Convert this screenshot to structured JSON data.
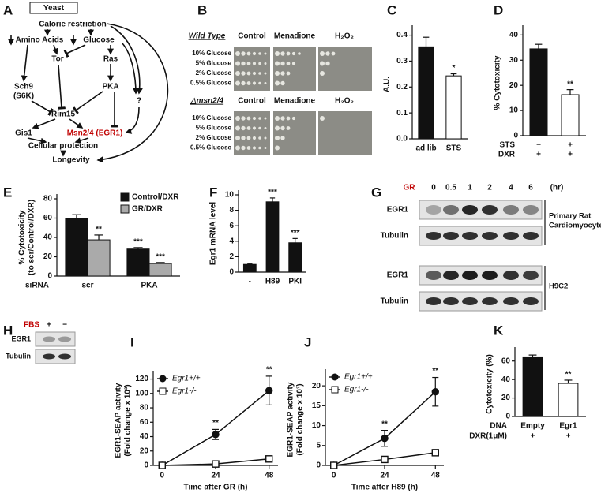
{
  "diagram": {
    "label": "A",
    "title": "Yeast",
    "nodes": [
      "Calorie restriction",
      "Amino Acids",
      "Glucose",
      "Tor",
      "Ras",
      "Sch9",
      "(S6K)",
      "PKA",
      "Rim15",
      "?",
      "Gis1",
      "Msn2/4 (EGR1)",
      "Cellular protection",
      "Longevity"
    ]
  },
  "plates": {
    "label": "B",
    "columns": [
      "Control",
      "Menadione",
      "H₂O₂"
    ],
    "strains": [
      {
        "name": "Wild Type",
        "rows": [
          "10% Glucose",
          "5% Glucose",
          "2% Glucose",
          "0.5% Glucose"
        ]
      },
      {
        "name": "△msn2/4",
        "rows": [
          "10% Glucose",
          "5% Glucose",
          "2% Glucose",
          "0.5% Glucose"
        ]
      }
    ]
  },
  "blot_g": {
    "label": "G",
    "treatment": "GR",
    "timepoints": [
      "0",
      "0.5",
      "1",
      "2",
      "4",
      "6"
    ],
    "unit": "(hr)",
    "blocks": [
      {
        "cell": [
          "Primary Rat",
          "Cardiomyocyte"
        ],
        "rows": [
          "EGR1",
          "Tubulin"
        ]
      },
      {
        "cell": [
          "H9C2"
        ],
        "rows": [
          "EGR1",
          "Tubulin"
        ]
      }
    ]
  },
  "blot_h": {
    "label": "H",
    "treatment": "FBS",
    "conditions": [
      "+",
      "−"
    ],
    "rows": [
      "EGR1",
      "Tubulin"
    ]
  },
  "chart_data": [
    {
      "type": "bar",
      "label": "C",
      "ylabel": [
        "A.U."
      ],
      "categories": [
        "ad lib",
        "STS"
      ],
      "values": [
        0.355,
        0.243
      ],
      "errors": [
        0.037,
        0.008
      ],
      "significance": [
        null,
        "*"
      ],
      "colors": [
        "#111111",
        "#ffffff"
      ],
      "ylim": [
        0,
        0.42
      ],
      "yticks": [
        {
          "value": 0,
          "label": "0.0"
        },
        0.1,
        0.2,
        0.3,
        0.4
      ]
    },
    {
      "type": "bar",
      "label": "D",
      "ylabel": [
        "% Cytotoxicity"
      ],
      "values": [
        34.5,
        16.3
      ],
      "errors": [
        1.8,
        2.0
      ],
      "significance": [
        null,
        "**"
      ],
      "colors": [
        "#111111",
        "#ffffff"
      ],
      "ylim": [
        0,
        42
      ],
      "yticks": [
        0,
        10,
        20,
        30,
        40
      ],
      "conditions": [
        {
          "name": "STS",
          "values": [
            "−",
            "+"
          ]
        },
        {
          "name": "DXR",
          "values": [
            "+",
            "+"
          ]
        }
      ]
    },
    {
      "type": "bar",
      "label": "E",
      "ylabel": [
        "% Cytotoxicity",
        "(to scr/Control/DXR)"
      ],
      "category_title": "siRNA",
      "categories": [
        "scr",
        "PKA"
      ],
      "series": [
        {
          "name": "Control/DXR",
          "color": "#111111",
          "values": [
            59.5,
            28.0
          ],
          "errors": [
            4.0,
            1.5
          ],
          "significance": [
            null,
            "***"
          ]
        },
        {
          "name": "GR/DXR",
          "color": "#aaaaaa",
          "values": [
            37.5,
            13.0
          ],
          "errors": [
            5.0,
            1.0
          ],
          "significance": [
            "**",
            "***"
          ]
        }
      ],
      "legend": "upper right",
      "ylim": [
        0,
        80
      ],
      "yticks": [
        0,
        20,
        40,
        60,
        80
      ]
    },
    {
      "type": "bar",
      "label": "F",
      "ylabel": [
        "Egr1 mRNA level"
      ],
      "categories": [
        "-",
        "H89",
        "PKI"
      ],
      "values": [
        1.0,
        9.1,
        3.8
      ],
      "errors": [
        0.1,
        0.5,
        0.55
      ],
      "significance": [
        null,
        "***",
        "***"
      ],
      "colors": [
        "#111111",
        "#111111",
        "#111111"
      ],
      "ylim": [
        0,
        10
      ],
      "yticks": [
        0,
        2,
        4,
        6,
        8,
        10
      ]
    },
    {
      "type": "line",
      "label": "I",
      "ylabel": [
        "EGR1-SEAP activity",
        "(Fold change x 10³)"
      ],
      "xlabel": "Time after GR (h)",
      "x": [
        0,
        24,
        48
      ],
      "series": [
        {
          "name": "Egr1+/+",
          "color": "#111111",
          "fill": "#111111",
          "marker": "circle",
          "values": [
            0,
            43,
            104
          ],
          "errors": [
            0,
            7,
            20
          ],
          "significance": [
            null,
            "**",
            "**"
          ]
        },
        {
          "name": "Egr1-/-",
          "color": "#111111",
          "fill": "#ffffff",
          "marker": "square",
          "values": [
            0,
            2,
            9
          ]
        }
      ],
      "legend": "upper left",
      "xlim": [
        -4,
        52
      ],
      "xticks": [
        0,
        24,
        48
      ],
      "ylim": [
        0,
        125
      ],
      "yticks": [
        0,
        20,
        40,
        60,
        80,
        100,
        120
      ]
    },
    {
      "type": "line",
      "label": "J",
      "ylabel": [
        "EGR1-SEAP activity",
        "(Fold change x 10³)"
      ],
      "xlabel": "Time after H89 (h)",
      "x": [
        0,
        24,
        48
      ],
      "series": [
        {
          "name": "Egr1+/+",
          "color": "#111111",
          "fill": "#111111",
          "marker": "circle",
          "values": [
            0,
            6.8,
            18.5
          ],
          "errors": [
            0,
            2.0,
            3.6
          ],
          "significance": [
            null,
            "**",
            "**"
          ]
        },
        {
          "name": "Egr1-/-",
          "color": "#111111",
          "fill": "#ffffff",
          "marker": "square",
          "values": [
            0,
            1.5,
            3.2
          ]
        }
      ],
      "legend": "upper left",
      "xlim": [
        -4,
        52
      ],
      "xticks": [
        0,
        24,
        48
      ],
      "ylim": [
        0,
        23
      ],
      "yticks": [
        0,
        5,
        10,
        15,
        20
      ]
    },
    {
      "type": "bar",
      "label": "K",
      "ylabel": [
        "Cytotoxicity (%)"
      ],
      "category_title": "DNA",
      "categories": [
        "Empty",
        "Egr1"
      ],
      "values": [
        64.5,
        35.8
      ],
      "errors": [
        2.0,
        3.5
      ],
      "significance": [
        null,
        "**"
      ],
      "colors": [
        "#111111",
        "#ffffff"
      ],
      "ylim": [
        0,
        70
      ],
      "yticks": [
        0,
        20,
        40,
        60
      ],
      "conditions": [
        {
          "name": "DXR(1μM)",
          "values": [
            "+",
            "+"
          ]
        }
      ]
    }
  ]
}
